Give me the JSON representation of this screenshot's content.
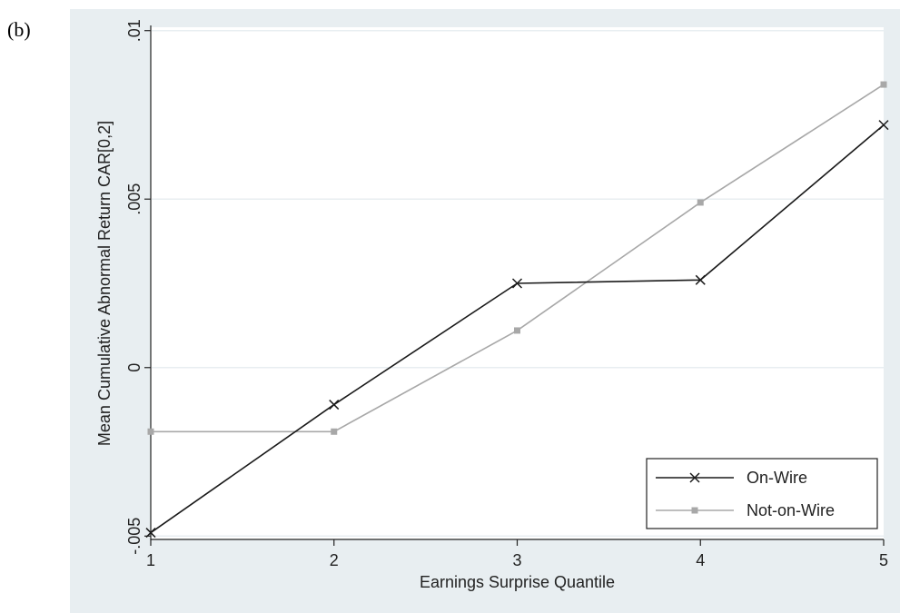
{
  "panel_label": "(b)",
  "colors": {
    "background": "#e8eef1",
    "plot_area": "#ffffff",
    "on_wire": "#1a1a1a",
    "not_on_wire": "#a8a8a8",
    "grid": "#e8eef1"
  },
  "chart_data": {
    "type": "line",
    "xlabel": "Earnings Surprise Quantile",
    "ylabel": "Mean Cumulative Abnormal Return CAR[0,2]",
    "x": [
      1,
      2,
      3,
      4,
      5
    ],
    "xticks": [
      "1",
      "2",
      "3",
      "4",
      "5"
    ],
    "yticks": [
      {
        "value": -0.005,
        "label": "-.005"
      },
      {
        "value": 0,
        "label": "0"
      },
      {
        "value": 0.005,
        "label": ".005"
      },
      {
        "value": 0.01,
        "label": ".01"
      }
    ],
    "xlim": [
      1,
      5
    ],
    "ylim": [
      -0.0051,
      0.0101
    ],
    "grid": true,
    "legend_position": "bottom-right",
    "series": [
      {
        "name": "On-Wire",
        "marker": "x",
        "color": "#1a1a1a",
        "values": [
          -0.0049,
          -0.0011,
          0.0025,
          0.0026,
          0.0072
        ]
      },
      {
        "name": "Not-on-Wire",
        "marker": "square",
        "color": "#a8a8a8",
        "values": [
          -0.0019,
          -0.0019,
          0.0011,
          0.0049,
          0.0084
        ]
      }
    ]
  }
}
